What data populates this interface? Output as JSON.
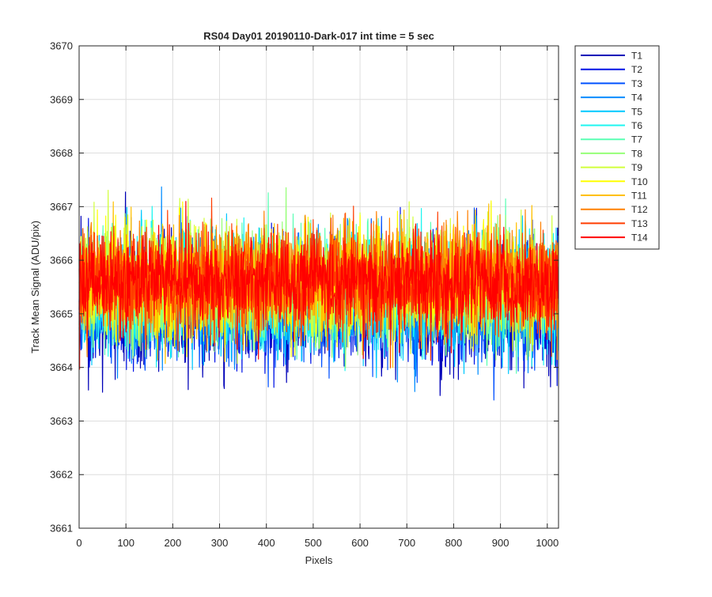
{
  "chart_data": {
    "type": "line",
    "title": "RS04 Day01 20190110-Dark-017 int time = 5 sec",
    "xlabel": "Pixels",
    "ylabel": "Track Mean Signal (ADU/pix)",
    "xlim": [
      0,
      1024
    ],
    "ylim": [
      3661,
      3670
    ],
    "xticks": [
      0,
      100,
      200,
      300,
      400,
      500,
      600,
      700,
      800,
      900,
      1000
    ],
    "yticks": [
      3661,
      3662,
      3663,
      3664,
      3665,
      3666,
      3667,
      3668,
      3669,
      3670
    ],
    "grid": true,
    "legend_position": "outside-top-right",
    "n_points": 1024,
    "series_stats_note": "Each trace is per-pixel noise around ~3665.5 ADU/pix; drawn as a sampled noisy line.",
    "series": [
      {
        "name": "T1",
        "color": "#0000b8",
        "mean": 3665.1,
        "std": 0.95
      },
      {
        "name": "T2",
        "color": "#0014e6",
        "mean": 3665.2,
        "std": 0.9
      },
      {
        "name": "T3",
        "color": "#0050ff",
        "mean": 3665.2,
        "std": 0.9
      },
      {
        "name": "T4",
        "color": "#008cff",
        "mean": 3665.3,
        "std": 0.85
      },
      {
        "name": "T5",
        "color": "#00c8ff",
        "mean": 3665.3,
        "std": 0.85
      },
      {
        "name": "T6",
        "color": "#1ef5f0",
        "mean": 3665.4,
        "std": 0.85
      },
      {
        "name": "T7",
        "color": "#5affb4",
        "mean": 3665.5,
        "std": 0.85
      },
      {
        "name": "T8",
        "color": "#96ff78",
        "mean": 3665.5,
        "std": 0.85
      },
      {
        "name": "T9",
        "color": "#d2ff3c",
        "mean": 3665.6,
        "std": 0.85
      },
      {
        "name": "T10",
        "color": "#ffff00",
        "mean": 3665.6,
        "std": 0.8
      },
      {
        "name": "T11",
        "color": "#ffc000",
        "mean": 3665.6,
        "std": 0.8
      },
      {
        "name": "T12",
        "color": "#ff8000",
        "mean": 3665.6,
        "std": 0.8
      },
      {
        "name": "T13",
        "color": "#ff3c00",
        "mean": 3665.6,
        "std": 0.8
      },
      {
        "name": "T14",
        "color": "#ff0000",
        "mean": 3665.6,
        "std": 0.75
      }
    ]
  }
}
